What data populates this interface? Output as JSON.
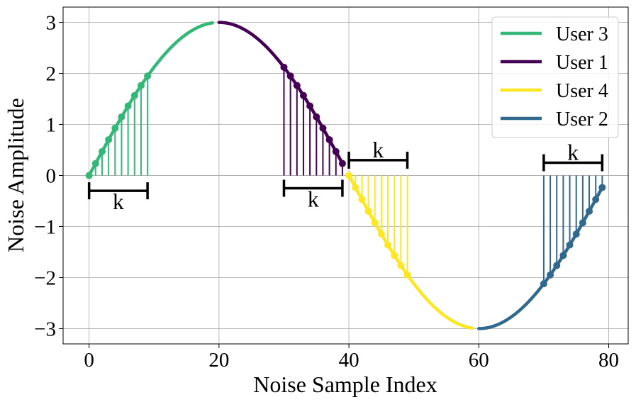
{
  "chart_data": {
    "type": "line",
    "title": "",
    "xlabel": "Noise Sample Index",
    "ylabel": "Noise Amplitude",
    "xlim": [
      -4,
      83
    ],
    "ylim": [
      -3.3,
      3.3
    ],
    "xticks": [
      0,
      20,
      40,
      60,
      80
    ],
    "xtick_labels": [
      "0",
      "20",
      "40",
      "60",
      "80"
    ],
    "yticks": [
      -3,
      -2,
      -1,
      0,
      1,
      2,
      3
    ],
    "ytick_labels": [
      "−3",
      "−2",
      "−1",
      "0",
      "1",
      "2",
      "3"
    ],
    "grid": true,
    "legend_position": "top-right",
    "function": "y = 3*sin(2*pi*x/80)",
    "series": [
      {
        "name": "User 3",
        "color": "#35b779",
        "x_range": [
          0,
          19
        ],
        "sampled_x": [
          0,
          1,
          2,
          3,
          4,
          5,
          6,
          7,
          8,
          9
        ]
      },
      {
        "name": "User 1",
        "color": "#440154",
        "x_range": [
          20,
          39
        ],
        "sampled_x": [
          30,
          31,
          32,
          33,
          34,
          35,
          36,
          37,
          38,
          39
        ]
      },
      {
        "name": "User 4",
        "color": "#fde725",
        "x_range": [
          40,
          59
        ],
        "sampled_x": [
          40,
          41,
          42,
          43,
          44,
          45,
          46,
          47,
          48,
          49
        ]
      },
      {
        "name": "User 2",
        "color": "#31688e",
        "x_range": [
          60,
          79
        ],
        "sampled_x": [
          70,
          71,
          72,
          73,
          74,
          75,
          76,
          77,
          78,
          79
        ]
      }
    ],
    "annotations": [
      {
        "label": "k",
        "x_start": 0,
        "x_end": 9,
        "y": -0.3
      },
      {
        "label": "k",
        "x_start": 30,
        "x_end": 39,
        "y": -0.25
      },
      {
        "label": "k",
        "x_start": 40,
        "x_end": 49,
        "y": 0.3
      },
      {
        "label": "k",
        "x_start": 70,
        "x_end": 79,
        "y": 0.25
      }
    ]
  }
}
